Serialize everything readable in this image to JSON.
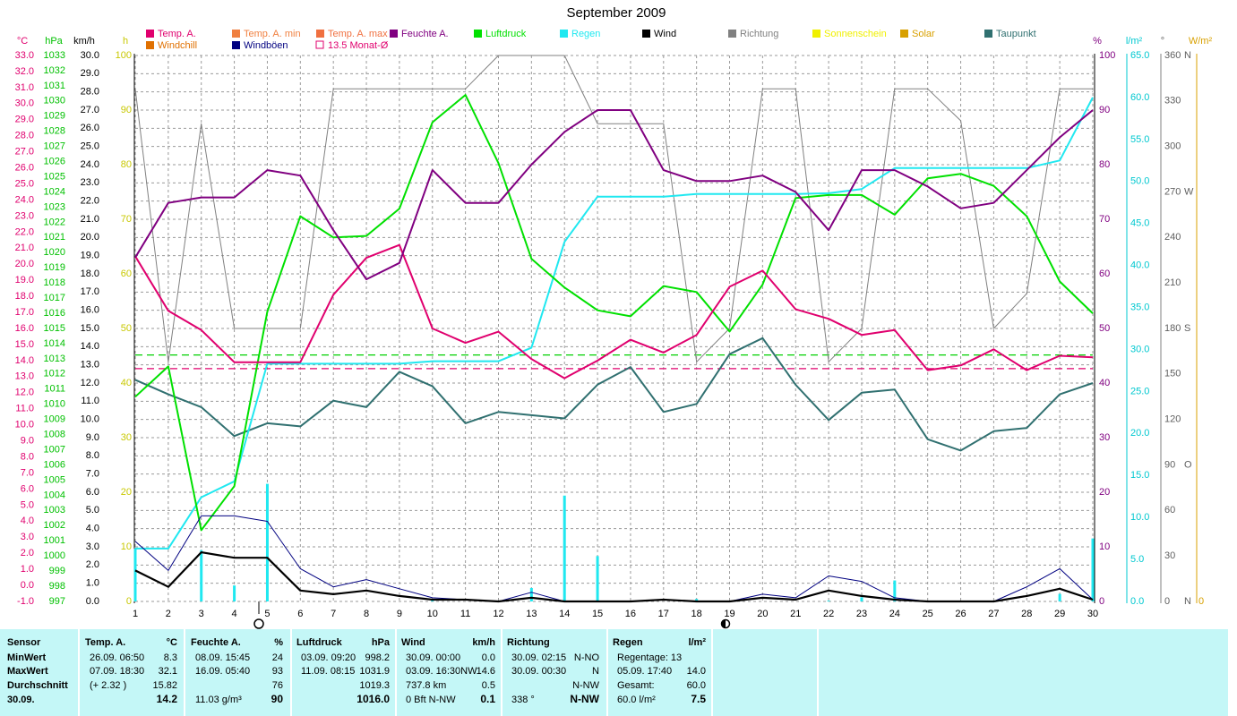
{
  "chart_data": {
    "type": "line",
    "title": "September 2009",
    "x": [
      1,
      2,
      3,
      4,
      5,
      6,
      7,
      8,
      9,
      10,
      11,
      12,
      13,
      14,
      15,
      16,
      17,
      18,
      19,
      20,
      21,
      22,
      23,
      24,
      25,
      26,
      27,
      28,
      29,
      30
    ],
    "xlim": [
      1,
      30
    ],
    "grid": true,
    "axes": {
      "temp": {
        "unit": "°C",
        "color": "#e0006e",
        "lim": [
          -1,
          33
        ],
        "ticks": [
          {
            "value": -1,
            "label": "-1.0"
          },
          {
            "value": 0,
            "label": "0.0"
          },
          {
            "value": 1,
            "label": "1.0"
          },
          {
            "value": 2,
            "label": "2.0"
          },
          {
            "value": 3,
            "label": "3.0"
          },
          {
            "value": 4,
            "label": "4.0"
          },
          {
            "value": 5,
            "label": "5.0"
          },
          {
            "value": 6,
            "label": "6.0"
          },
          {
            "value": 7,
            "label": "7.0"
          },
          {
            "value": 8,
            "label": "8.0"
          },
          {
            "value": 9,
            "label": "9.0"
          },
          {
            "value": 10,
            "label": "10.0"
          },
          {
            "value": 11,
            "label": "11.0"
          },
          {
            "value": 12,
            "label": "12.0"
          },
          {
            "value": 13,
            "label": "13.0"
          },
          {
            "value": 14,
            "label": "14.0"
          },
          {
            "value": 15,
            "label": "15.0"
          },
          {
            "value": 16,
            "label": "16.0"
          },
          {
            "value": 17,
            "label": "17.0"
          },
          {
            "value": 18,
            "label": "18.0"
          },
          {
            "value": 19,
            "label": "19.0"
          },
          {
            "value": 20,
            "label": "20.0"
          },
          {
            "value": 21,
            "label": "21.0"
          },
          {
            "value": 22,
            "label": "22.0"
          },
          {
            "value": 23,
            "label": "23.0"
          },
          {
            "value": 24,
            "label": "24.0"
          },
          {
            "value": 25,
            "label": "25.0"
          },
          {
            "value": 26,
            "label": "26.0"
          },
          {
            "value": 27,
            "label": "27.0"
          },
          {
            "value": 28,
            "label": "28.0"
          },
          {
            "value": 29,
            "label": "29.0"
          },
          {
            "value": 30,
            "label": "30.0"
          },
          {
            "value": 31,
            "label": "31.0"
          },
          {
            "value": 32,
            "label": "32.0"
          },
          {
            "value": 33,
            "label": "33.0"
          }
        ]
      },
      "pressure": {
        "unit": "hPa",
        "color": "#00c000",
        "lim": [
          997,
          1033
        ],
        "ticks": [
          997,
          998,
          999,
          1000,
          1001,
          1002,
          1003,
          1004,
          1005,
          1006,
          1007,
          1008,
          1009,
          1010,
          1011,
          1012,
          1013,
          1014,
          1015,
          1016,
          1017,
          1018,
          1019,
          1020,
          1021,
          1022,
          1023,
          1024,
          1025,
          1026,
          1027,
          1028,
          1029,
          1030,
          1031,
          1032,
          1033
        ]
      },
      "wind": {
        "unit": "km/h",
        "color": "#000000",
        "lim": [
          0,
          30
        ],
        "ticks": [
          {
            "value": 0,
            "label": "0.0"
          },
          {
            "value": 1,
            "label": "1.0"
          },
          {
            "value": 2,
            "label": "2.0"
          },
          {
            "value": 3,
            "label": "3.0"
          },
          {
            "value": 4,
            "label": "4.0"
          },
          {
            "value": 5,
            "label": "5.0"
          },
          {
            "value": 6,
            "label": "6.0"
          },
          {
            "value": 7,
            "label": "7.0"
          },
          {
            "value": 8,
            "label": "8.0"
          },
          {
            "value": 9,
            "label": "9.0"
          },
          {
            "value": 10,
            "label": "10.0"
          },
          {
            "value": 11,
            "label": "11.0"
          },
          {
            "value": 12,
            "label": "12.0"
          },
          {
            "value": 13,
            "label": "13.0"
          },
          {
            "value": 14,
            "label": "14.0"
          },
          {
            "value": 15,
            "label": "15.0"
          },
          {
            "value": 16,
            "label": "16.0"
          },
          {
            "value": 17,
            "label": "17.0"
          },
          {
            "value": 18,
            "label": "18.0"
          },
          {
            "value": 19,
            "label": "19.0"
          },
          {
            "value": 20,
            "label": "20.0"
          },
          {
            "value": 21,
            "label": "21.0"
          },
          {
            "value": 22,
            "label": "22.0"
          },
          {
            "value": 23,
            "label": "23.0"
          },
          {
            "value": 24,
            "label": "24.0"
          },
          {
            "value": 25,
            "label": "25.0"
          },
          {
            "value": 26,
            "label": "26.0"
          },
          {
            "value": 27,
            "label": "27.0"
          },
          {
            "value": 28,
            "label": "28.0"
          },
          {
            "value": 29,
            "label": "29.0"
          },
          {
            "value": 30,
            "label": "30.0"
          }
        ]
      },
      "hours": {
        "unit": "h",
        "color": "#c8c800",
        "lim": [
          0,
          100
        ],
        "ticks": [
          0,
          10,
          20,
          30,
          40,
          50,
          60,
          70,
          80,
          90,
          100
        ]
      },
      "humidity": {
        "unit": "%",
        "color": "#800080",
        "lim": [
          0,
          100
        ],
        "ticks": [
          0,
          10,
          20,
          30,
          40,
          50,
          60,
          70,
          80,
          90,
          100
        ]
      },
      "rain": {
        "unit": "l/m²",
        "color": "#00c8d0",
        "lim": [
          0,
          65
        ],
        "ticks": [
          {
            "value": 0,
            "label": "0.0"
          },
          {
            "value": 5,
            "label": "5.0"
          },
          {
            "value": 10,
            "label": "10.0"
          },
          {
            "value": 15,
            "label": "15.0"
          },
          {
            "value": 20,
            "label": "20.0"
          },
          {
            "value": 25,
            "label": "25.0"
          },
          {
            "value": 30,
            "label": "30.0"
          },
          {
            "value": 35,
            "label": "35.0"
          },
          {
            "value": 40,
            "label": "40.0"
          },
          {
            "value": 45,
            "label": "45.0"
          },
          {
            "value": 50,
            "label": "50.0"
          },
          {
            "value": 55,
            "label": "55.0"
          },
          {
            "value": 60,
            "label": "60.0"
          },
          {
            "value": 65,
            "label": "65.0"
          }
        ]
      },
      "direction": {
        "unit": "°",
        "color": "#606060",
        "lim": [
          0,
          360
        ],
        "ticks": [
          0,
          30,
          60,
          90,
          120,
          150,
          180,
          210,
          240,
          270,
          300,
          330,
          360
        ],
        "compass": [
          {
            "value": 0,
            "label": "N"
          },
          {
            "value": 90,
            "label": "O"
          },
          {
            "value": 180,
            "label": "S"
          },
          {
            "value": 270,
            "label": "W"
          },
          {
            "value": 360,
            "label": "N"
          }
        ]
      },
      "solar": {
        "unit": "W/m²",
        "color": "#d8a000",
        "ticks": [
          0
        ]
      }
    },
    "series": [
      {
        "name": "Temp. A.",
        "color": "#e0006e",
        "axis": "temp",
        "values": [
          20.5,
          17.1,
          15.9,
          13.9,
          13.9,
          13.9,
          18.1,
          20.4,
          21.2,
          16.0,
          15.1,
          15.8,
          14.1,
          12.9,
          14.0,
          15.3,
          14.5,
          15.6,
          18.6,
          19.6,
          17.2,
          16.6,
          15.6,
          15.9,
          13.4,
          13.7,
          14.7,
          13.4,
          14.3,
          14.2
        ]
      },
      {
        "name": "Temp. A. min",
        "color": "#f08040"
      },
      {
        "name": "Temp. A. max",
        "color": "#f07040"
      },
      {
        "name": "Feuchte A.",
        "color": "#800080",
        "axis": "humidity",
        "values": [
          63,
          73,
          74,
          74,
          79,
          78,
          68,
          59,
          62,
          79,
          73,
          73,
          80,
          86,
          90,
          90,
          79,
          77,
          77,
          78,
          75,
          68,
          79,
          79,
          76,
          72,
          73,
          79,
          85,
          90
        ]
      },
      {
        "name": "Luftdruck",
        "color": "#00e000",
        "axis": "pressure",
        "values": [
          1010.5,
          1012.5,
          1001.7,
          1004.6,
          1016.1,
          1022.4,
          1021.0,
          1021.1,
          1022.9,
          1028.6,
          1030.4,
          1025.9,
          1019.6,
          1017.7,
          1016.2,
          1015.8,
          1017.8,
          1017.4,
          1014.8,
          1017.9,
          1023.6,
          1023.8,
          1023.8,
          1022.5,
          1024.9,
          1025.2,
          1024.4,
          1022.4,
          1018.1,
          1016.0
        ]
      },
      {
        "name": "Regen",
        "color": "#20e8f0",
        "axis": "rain",
        "values": [
          6.3,
          6.3,
          12.4,
          14.3,
          28.3,
          28.3,
          28.3,
          28.3,
          28.3,
          28.6,
          28.6,
          28.6,
          30.2,
          42.8,
          48.2,
          48.2,
          48.2,
          48.5,
          48.5,
          48.5,
          48.5,
          48.6,
          49.1,
          51.6,
          51.6,
          51.6,
          51.6,
          51.6,
          52.5,
          60.0
        ]
      },
      {
        "name": "Wind",
        "color": "#000000",
        "axis": "wind",
        "values": [
          1.7,
          0.8,
          2.7,
          2.4,
          2.4,
          0.6,
          0.4,
          0.6,
          0.3,
          0.1,
          0.1,
          0,
          0.2,
          0,
          0,
          0,
          0.1,
          0,
          0,
          0.2,
          0.1,
          0.6,
          0.3,
          0.1,
          0,
          0,
          0,
          0.3,
          0.7,
          0.1
        ]
      },
      {
        "name": "Richtung",
        "color": "#808080",
        "axis": "direction",
        "values": [
          338,
          158,
          315,
          180,
          180,
          180,
          338,
          338,
          338,
          338,
          338,
          360,
          360,
          360,
          315,
          315,
          315,
          158,
          180,
          338,
          338,
          158,
          180,
          338,
          338,
          317,
          180,
          203,
          338,
          338
        ]
      },
      {
        "name": "Sonnenschein",
        "color": "#f0f000"
      },
      {
        "name": "Solar",
        "color": "#d8a000"
      },
      {
        "name": "Taupunkt",
        "color": "#307070",
        "axis": "temp",
        "values": [
          12.8,
          11.9,
          11.1,
          9.3,
          10.1,
          9.9,
          11.5,
          11.1,
          13.3,
          12.4,
          10.1,
          10.8,
          10.6,
          10.4,
          12.5,
          13.6,
          10.8,
          11.3,
          14.4,
          15.4,
          12.5,
          10.3,
          12.0,
          12.2,
          9.1,
          8.4,
          9.6,
          9.8,
          11.9,
          12.6
        ]
      },
      {
        "name": "Windchill",
        "color": "#e07000"
      },
      {
        "name": "Windböen",
        "color": "#000080",
        "axis": "wind",
        "values": [
          3.3,
          1.7,
          4.7,
          4.7,
          4.4,
          1.8,
          0.8,
          1.2,
          0.7,
          0.2,
          0.1,
          0,
          0.5,
          0,
          0,
          0,
          0.1,
          0,
          0,
          0.4,
          0.2,
          1.4,
          1.1,
          0.2,
          0,
          0,
          0,
          0.8,
          1.8,
          0.1
        ]
      }
    ],
    "rain_daily": {
      "color": "#20e8f0",
      "axis": "rain",
      "values": [
        6.3,
        0,
        6.1,
        1.9,
        14.0,
        0,
        0,
        0,
        0,
        0.3,
        0,
        0,
        1.6,
        12.6,
        5.4,
        0,
        0,
        0.3,
        0,
        0,
        0,
        0.1,
        0.5,
        2.5,
        0,
        0,
        0,
        0,
        0.9,
        7.5
      ]
    },
    "monthly_avg": {
      "label": "13.5 Monat-Ø",
      "value": 13.5,
      "axis": "temp",
      "color": "#e0006e"
    },
    "pressure_reference": {
      "value": 1013.25,
      "axis": "pressure",
      "color": "#00d000"
    }
  },
  "stats": {
    "columns": [
      {
        "header": "Sensor",
        "rows": [
          {
            "text": "MinWert"
          },
          {
            "text": "MaxWert"
          },
          {
            "text": "Durchschnitt"
          },
          {
            "text": "30.09."
          }
        ]
      },
      {
        "header": "Temp. A.",
        "unit": "°C",
        "rows": [
          {
            "text": "26.09.  06:50",
            "value": "8.3"
          },
          {
            "text": "07.09.  18:30",
            "value": "32.1"
          },
          {
            "text": "(+ 2.32 )",
            "value": "15.82"
          },
          {
            "value": "14.2"
          }
        ]
      },
      {
        "header": "Feuchte A.",
        "unit": "%",
        "rows": [
          {
            "text": "08.09.  15:45",
            "value": "24"
          },
          {
            "text": "16.09.  05:40",
            "value": "93"
          },
          {
            "value": "76"
          },
          {
            "text": "11.03 g/m³",
            "value": "90"
          }
        ]
      },
      {
        "header": "Luftdruck",
        "unit": "hPa",
        "rows": [
          {
            "text": "03.09.  09:20",
            "value": "998.2"
          },
          {
            "text": "11.09.  08:15",
            "value": "1031.9"
          },
          {
            "value": "1019.3"
          },
          {
            "value": "1016.0"
          }
        ]
      },
      {
        "header": "Wind",
        "unit": "km/h",
        "rows": [
          {
            "text": "30.09.  00:00",
            "value": "0.0"
          },
          {
            "text": "03.09.  16:30NW",
            "value": "14.6"
          },
          {
            "text": "737.8 km",
            "value": "0.5"
          },
          {
            "text": "0 Bft N-NW",
            "value": "0.1"
          }
        ]
      },
      {
        "header": "Richtung",
        "rows": [
          {
            "text": "30.09.  02:15",
            "value": "N-NO"
          },
          {
            "text": "30.09.  00:30",
            "value": "N"
          },
          {
            "value": "N-NW"
          },
          {
            "text": "338 °",
            "value": "N-NW"
          }
        ]
      },
      {
        "header": "Regen",
        "unit": "l/m²",
        "rows": [
          {
            "text": "Regentage: 13"
          },
          {
            "text": "05.09.  17:40",
            "value": "14.0"
          },
          {
            "text": "Gesamt:",
            "value": "60.0"
          },
          {
            "text": "60.0 l/m²",
            "value": "7.5"
          }
        ]
      }
    ]
  }
}
